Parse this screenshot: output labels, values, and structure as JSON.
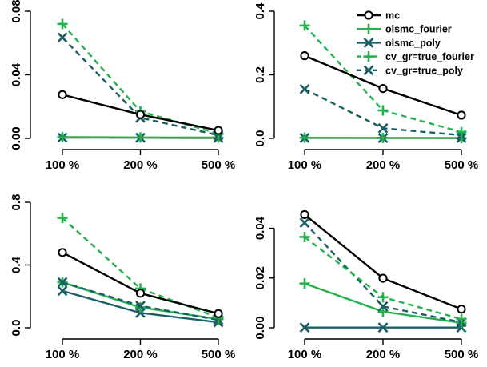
{
  "chart_data": {
    "type": "line",
    "categories": [
      "100 %",
      "200 %",
      "500 %"
    ],
    "legend": {
      "placement": "top-right",
      "entries": [
        "mc",
        "olsmc_fourier",
        "olsmc_poly",
        "cv_gr=true_fourier",
        "cv_gr=true_poly"
      ]
    },
    "series_styles": [
      {
        "color": "#000000",
        "dash": "solid",
        "marker": "circle"
      },
      {
        "color": "#22b24c",
        "dash": "solid",
        "marker": "plus"
      },
      {
        "color": "#1b5e63",
        "dash": "solid",
        "marker": "x"
      },
      {
        "color": "#22b24c",
        "dash": "dashed",
        "marker": "plus"
      },
      {
        "color": "#1b5e63",
        "dash": "dashed",
        "marker": "x"
      }
    ],
    "panels": [
      {
        "ylim": [
          0,
          0.08
        ],
        "yticks": [
          "0.00",
          "0.04",
          "0.08"
        ],
        "ytick_values": [
          0,
          0.04,
          0.08
        ],
        "series": [
          {
            "values": [
              0.0275,
              0.015,
              0.005
            ]
          },
          {
            "values": [
              0.0008,
              0.0006,
              0.0005
            ]
          },
          {
            "values": [
              0.0005,
              0.0004,
              0.0003
            ]
          },
          {
            "values": [
              0.072,
              0.017,
              0.003
            ]
          },
          {
            "values": [
              0.0635,
              0.013,
              0.002
            ]
          }
        ]
      },
      {
        "ylim": [
          0,
          0.4
        ],
        "yticks": [
          "0.0",
          "0.2",
          "0.4"
        ],
        "ytick_values": [
          0,
          0.2,
          0.4
        ],
        "series": [
          {
            "values": [
              0.26,
              0.157,
              0.073
            ]
          },
          {
            "values": [
              0.002,
              0.0015,
              0.001
            ]
          },
          {
            "values": [
              0.0015,
              0.001,
              0.001
            ]
          },
          {
            "values": [
              0.355,
              0.088,
              0.02
            ]
          },
          {
            "values": [
              0.155,
              0.032,
              0.01
            ]
          }
        ]
      },
      {
        "ylim": [
          0,
          0.8
        ],
        "yticks": [
          "0.0",
          "0.4",
          "0.8"
        ],
        "ytick_values": [
          0,
          0.4,
          0.8
        ],
        "series": [
          {
            "values": [
              0.48,
              0.22,
              0.09
            ]
          },
          {
            "values": [
              0.29,
              0.13,
              0.055
            ]
          },
          {
            "values": [
              0.235,
              0.095,
              0.035
            ]
          },
          {
            "values": [
              0.7,
              0.25,
              0.065
            ]
          },
          {
            "values": [
              0.29,
              0.14,
              0.05
            ]
          }
        ]
      },
      {
        "ylim": [
          0,
          0.045
        ],
        "yticks": [
          "0.00",
          "0.02",
          "0.04"
        ],
        "ytick_values": [
          0,
          0.02,
          0.04
        ],
        "series": [
          {
            "values": [
              0.0455,
              0.0199,
              0.0075
            ]
          },
          {
            "values": [
              0.0178,
              0.0065,
              0.002
            ]
          },
          {
            "values": [
              0.0001,
              0.0001,
              0.0001
            ]
          },
          {
            "values": [
              0.0365,
              0.0123,
              0.0035
            ]
          },
          {
            "values": [
              0.0422,
              0.0086,
              0.0022
            ]
          }
        ]
      }
    ]
  }
}
